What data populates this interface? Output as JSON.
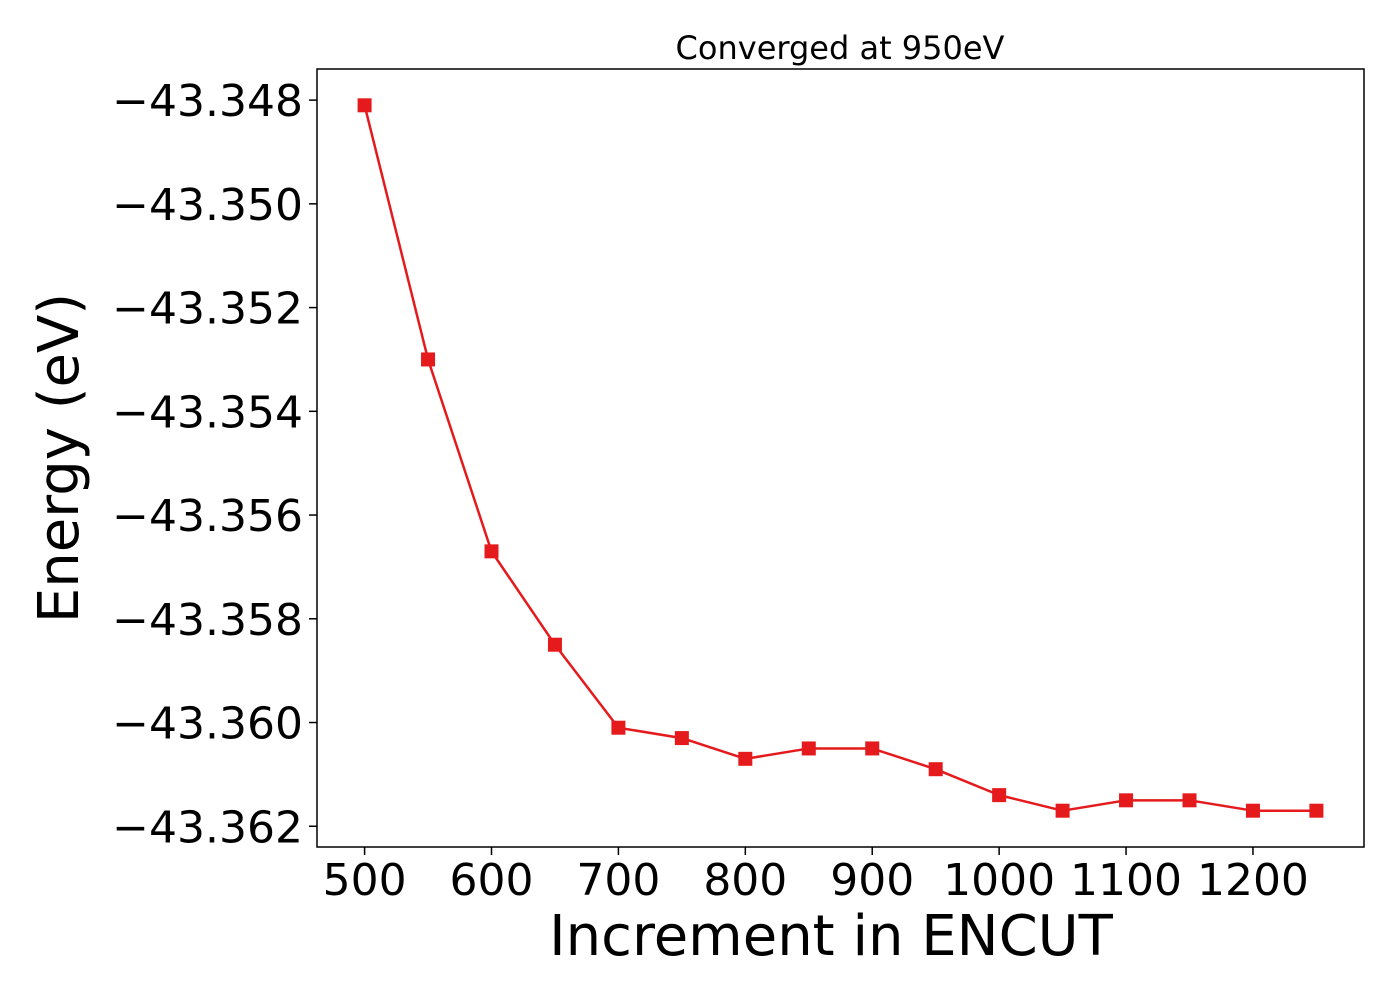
{
  "chart_data": {
    "type": "line",
    "title": "Converged at 950eV",
    "xlabel": "Increment in ENCUT",
    "ylabel": "Energy (eV)",
    "x": [
      500,
      550,
      600,
      650,
      700,
      750,
      800,
      850,
      900,
      950,
      1000,
      1050,
      1100,
      1150,
      1200,
      1250
    ],
    "series": [
      {
        "values": [
          -43.3481,
          -43.353,
          -43.3567,
          -43.3585,
          -43.3601,
          -43.3603,
          -43.3607,
          -43.3605,
          -43.3605,
          -43.3609,
          -43.3614,
          -43.3617,
          -43.3615,
          -43.3615,
          -43.3617,
          -43.3617
        ],
        "color": "#e41a1c",
        "marker": "square"
      }
    ],
    "xlim": [
      462.5,
      1287.5
    ],
    "ylim": [
      -43.3624,
      -43.3474
    ],
    "xticks": [
      500,
      600,
      700,
      800,
      900,
      1000,
      1100,
      1200
    ],
    "xtick_labels": [
      "500",
      "600",
      "700",
      "800",
      "900",
      "1000",
      "1100",
      "1200"
    ],
    "yticks": [
      -43.348,
      -43.35,
      -43.352,
      -43.354,
      -43.356,
      -43.358,
      -43.36,
      -43.362
    ],
    "ytick_labels": [
      "−43.348",
      "−43.350",
      "−43.352",
      "−43.354",
      "−43.356",
      "−43.358",
      "−43.360",
      "−43.362"
    ],
    "grid": false,
    "legend": "none"
  }
}
